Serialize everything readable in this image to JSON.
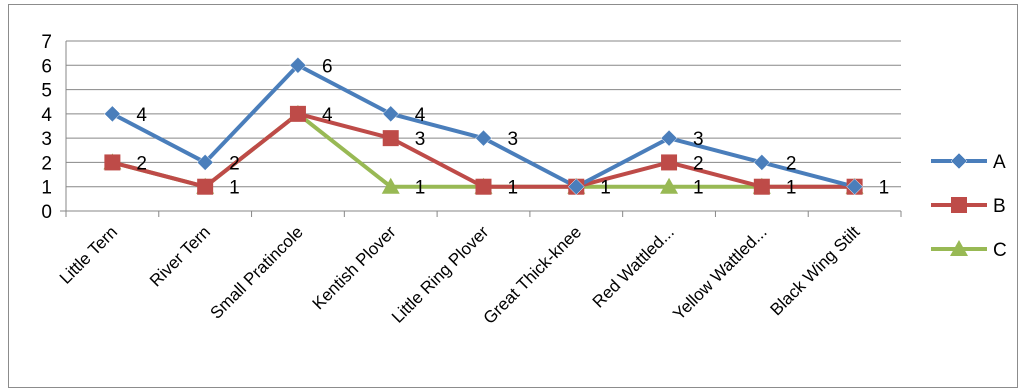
{
  "chart_data": {
    "type": "line",
    "title": "",
    "xlabel": "",
    "ylabel": "",
    "ylim": [
      0,
      7
    ],
    "yticks": [
      0,
      1,
      2,
      3,
      4,
      5,
      6,
      7
    ],
    "grid": "horizontal",
    "legend": "right",
    "categories": [
      "Little Tern",
      "River Tern",
      "Small Pratincole",
      "Kentish Plover",
      "Little Ring Plover",
      "Great Thick-knee",
      "Red Wattled...",
      "Yellow Wattled...",
      "Black Wing Stilt"
    ],
    "series": [
      {
        "name": "A",
        "color": "#4a7ebb",
        "marker": "diamond",
        "values": [
          4,
          2,
          6,
          4,
          3,
          1,
          3,
          2,
          1
        ]
      },
      {
        "name": "B",
        "color": "#be4b48",
        "marker": "square",
        "values": [
          2,
          1,
          4,
          3,
          1,
          1,
          2,
          1,
          1
        ]
      },
      {
        "name": "C",
        "color": "#98b954",
        "marker": "triangle",
        "values": [
          2,
          1,
          4,
          1,
          1,
          1,
          1,
          1,
          1
        ]
      }
    ],
    "data_labels": [
      {
        "category": 0,
        "text": "4"
      },
      {
        "category": 0,
        "text": "2"
      },
      {
        "category": 1,
        "text": "2"
      },
      {
        "category": 1,
        "text": "1"
      },
      {
        "category": 2,
        "text": "6"
      },
      {
        "category": 2,
        "text": "4"
      },
      {
        "category": 3,
        "text": "4"
      },
      {
        "category": 3,
        "text": "3"
      },
      {
        "category": 3,
        "text": "1"
      },
      {
        "category": 4,
        "text": "3"
      },
      {
        "category": 4,
        "text": "1"
      },
      {
        "category": 5,
        "text": "1"
      },
      {
        "category": 6,
        "text": "3"
      },
      {
        "category": 6,
        "text": "2"
      },
      {
        "category": 6,
        "text": "1"
      },
      {
        "category": 7,
        "text": "2"
      },
      {
        "category": 7,
        "text": "1"
      },
      {
        "category": 8,
        "text": "1"
      }
    ]
  }
}
